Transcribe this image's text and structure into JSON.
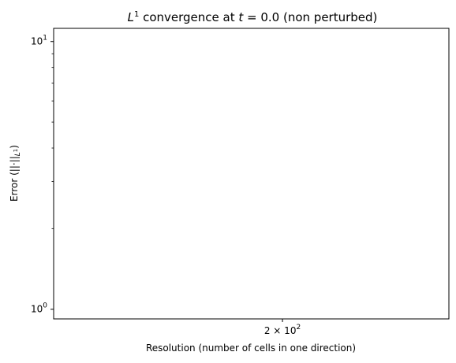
{
  "chart_data": {
    "type": "line",
    "title": "L¹ convergence at t = 0.0 (non perturbed)",
    "xlabel": "Resolution (number of cells in one direction)",
    "ylabel": "Error (||·||L¹)",
    "xscale": "log",
    "yscale": "log",
    "ylim": [
      0.92,
      11.2
    ],
    "xlim": [
      120,
      290
    ],
    "x_major_ticks": [
      {
        "value": 200,
        "mantissa": "2",
        "exponent": "2"
      }
    ],
    "y_major_ticks": [
      {
        "value": 1,
        "base": "10",
        "exponent": "0"
      },
      {
        "value": 10,
        "base": "10",
        "exponent": "1"
      }
    ],
    "y_minor_ticks": [
      2,
      3,
      4,
      5,
      6,
      7,
      8,
      9
    ],
    "grid": false,
    "series": []
  }
}
